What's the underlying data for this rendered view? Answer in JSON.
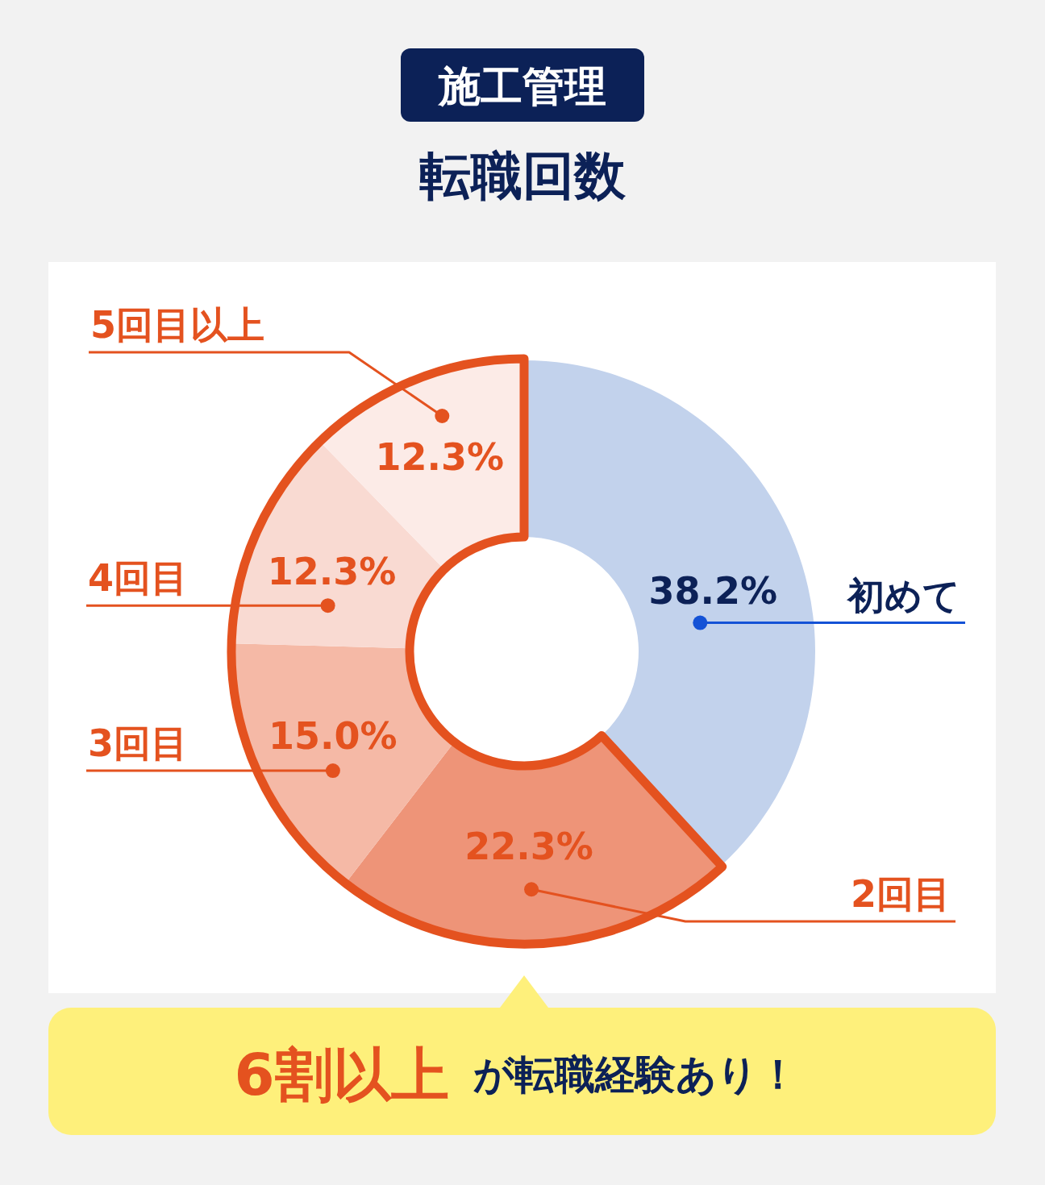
{
  "chart_data": {
    "type": "donut",
    "title": "転職回数",
    "subtitle": "施工管理",
    "categories": [
      "初めて",
      "2回目",
      "3回目",
      "4回目",
      "5回目以上"
    ],
    "values": [
      38.2,
      22.3,
      15.0,
      12.3,
      12.3
    ],
    "colors": [
      "#c2d2ec",
      "#ee9478",
      "#f5b9a6",
      "#f9dad2",
      "#fcebe7"
    ],
    "value_labels": [
      "38.2%",
      "22.3%",
      "15.0%",
      "12.3%",
      "12.3%"
    ],
    "annotations": [
      "6割以上",
      "が転職経験あり！"
    ]
  }
}
